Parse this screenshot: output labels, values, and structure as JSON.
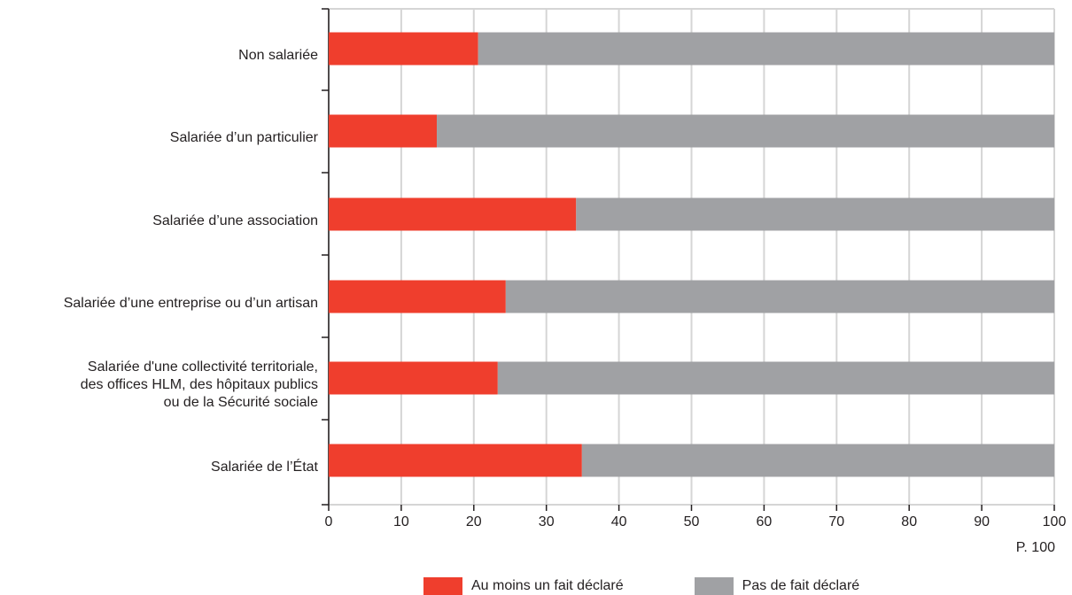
{
  "chart_data": {
    "type": "bar",
    "stacked": true,
    "orientation": "horizontal",
    "categories": [
      "Non salariée",
      "Salariée d’un particulier",
      "Salariée d’une association",
      "Salariée d’une entreprise ou d’un artisan",
      "Salariée d'une collectivité territoriale,\ndes offices HLM, des hôpitaux publics\nou de la Sécurité sociale",
      "Salariée de l’État"
    ],
    "series": [
      {
        "name": "Au moins un fait déclaré",
        "color": "#ef3e2d",
        "values": [
          20.6,
          14.9,
          34.1,
          24.4,
          23.3,
          34.9
        ]
      },
      {
        "name": "Pas de fait déclaré",
        "color": "#a0a1a4",
        "values": [
          79.4,
          85.1,
          65.9,
          75.6,
          76.7,
          65.1
        ]
      }
    ],
    "xlim": [
      0,
      100
    ],
    "xticks": [
      0,
      10,
      20,
      30,
      40,
      50,
      60,
      70,
      80,
      90,
      100
    ],
    "xunit": "P. 100",
    "grid": true,
    "legend_position": "bottom"
  }
}
